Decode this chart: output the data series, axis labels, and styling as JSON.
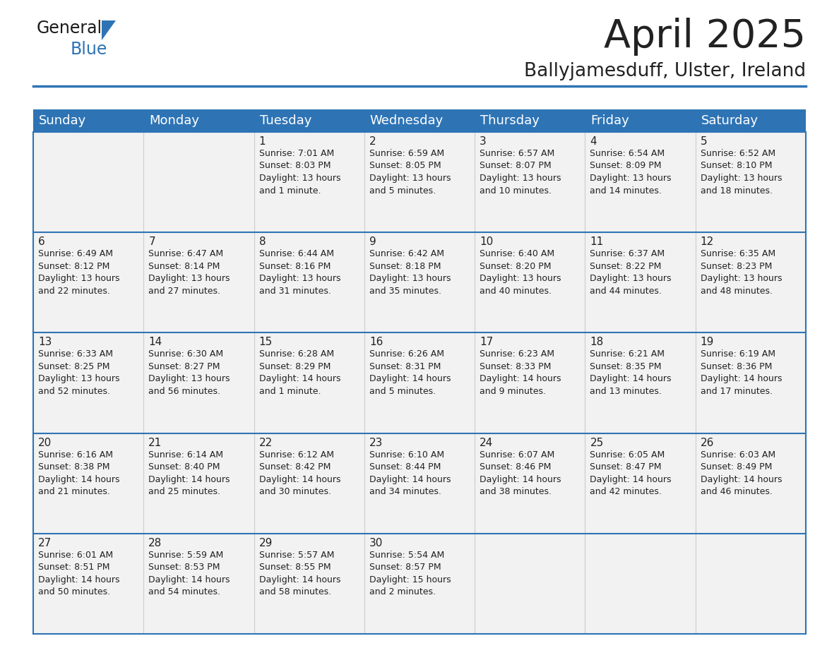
{
  "title": "April 2025",
  "subtitle": "Ballyjamesduff, Ulster, Ireland",
  "header_bg": "#2E74B5",
  "header_text_color": "#FFFFFF",
  "cell_bg_odd": "#F2F2F2",
  "cell_bg_even": "#FFFFFF",
  "border_color": "#2E74B5",
  "text_color": "#222222",
  "day_headers": [
    "Sunday",
    "Monday",
    "Tuesday",
    "Wednesday",
    "Thursday",
    "Friday",
    "Saturday"
  ],
  "weeks": [
    [
      {
        "day": null,
        "info": null
      },
      {
        "day": null,
        "info": null
      },
      {
        "day": "1",
        "info": "Sunrise: 7:01 AM\nSunset: 8:03 PM\nDaylight: 13 hours\nand 1 minute."
      },
      {
        "day": "2",
        "info": "Sunrise: 6:59 AM\nSunset: 8:05 PM\nDaylight: 13 hours\nand 5 minutes."
      },
      {
        "day": "3",
        "info": "Sunrise: 6:57 AM\nSunset: 8:07 PM\nDaylight: 13 hours\nand 10 minutes."
      },
      {
        "day": "4",
        "info": "Sunrise: 6:54 AM\nSunset: 8:09 PM\nDaylight: 13 hours\nand 14 minutes."
      },
      {
        "day": "5",
        "info": "Sunrise: 6:52 AM\nSunset: 8:10 PM\nDaylight: 13 hours\nand 18 minutes."
      }
    ],
    [
      {
        "day": "6",
        "info": "Sunrise: 6:49 AM\nSunset: 8:12 PM\nDaylight: 13 hours\nand 22 minutes."
      },
      {
        "day": "7",
        "info": "Sunrise: 6:47 AM\nSunset: 8:14 PM\nDaylight: 13 hours\nand 27 minutes."
      },
      {
        "day": "8",
        "info": "Sunrise: 6:44 AM\nSunset: 8:16 PM\nDaylight: 13 hours\nand 31 minutes."
      },
      {
        "day": "9",
        "info": "Sunrise: 6:42 AM\nSunset: 8:18 PM\nDaylight: 13 hours\nand 35 minutes."
      },
      {
        "day": "10",
        "info": "Sunrise: 6:40 AM\nSunset: 8:20 PM\nDaylight: 13 hours\nand 40 minutes."
      },
      {
        "day": "11",
        "info": "Sunrise: 6:37 AM\nSunset: 8:22 PM\nDaylight: 13 hours\nand 44 minutes."
      },
      {
        "day": "12",
        "info": "Sunrise: 6:35 AM\nSunset: 8:23 PM\nDaylight: 13 hours\nand 48 minutes."
      }
    ],
    [
      {
        "day": "13",
        "info": "Sunrise: 6:33 AM\nSunset: 8:25 PM\nDaylight: 13 hours\nand 52 minutes."
      },
      {
        "day": "14",
        "info": "Sunrise: 6:30 AM\nSunset: 8:27 PM\nDaylight: 13 hours\nand 56 minutes."
      },
      {
        "day": "15",
        "info": "Sunrise: 6:28 AM\nSunset: 8:29 PM\nDaylight: 14 hours\nand 1 minute."
      },
      {
        "day": "16",
        "info": "Sunrise: 6:26 AM\nSunset: 8:31 PM\nDaylight: 14 hours\nand 5 minutes."
      },
      {
        "day": "17",
        "info": "Sunrise: 6:23 AM\nSunset: 8:33 PM\nDaylight: 14 hours\nand 9 minutes."
      },
      {
        "day": "18",
        "info": "Sunrise: 6:21 AM\nSunset: 8:35 PM\nDaylight: 14 hours\nand 13 minutes."
      },
      {
        "day": "19",
        "info": "Sunrise: 6:19 AM\nSunset: 8:36 PM\nDaylight: 14 hours\nand 17 minutes."
      }
    ],
    [
      {
        "day": "20",
        "info": "Sunrise: 6:16 AM\nSunset: 8:38 PM\nDaylight: 14 hours\nand 21 minutes."
      },
      {
        "day": "21",
        "info": "Sunrise: 6:14 AM\nSunset: 8:40 PM\nDaylight: 14 hours\nand 25 minutes."
      },
      {
        "day": "22",
        "info": "Sunrise: 6:12 AM\nSunset: 8:42 PM\nDaylight: 14 hours\nand 30 minutes."
      },
      {
        "day": "23",
        "info": "Sunrise: 6:10 AM\nSunset: 8:44 PM\nDaylight: 14 hours\nand 34 minutes."
      },
      {
        "day": "24",
        "info": "Sunrise: 6:07 AM\nSunset: 8:46 PM\nDaylight: 14 hours\nand 38 minutes."
      },
      {
        "day": "25",
        "info": "Sunrise: 6:05 AM\nSunset: 8:47 PM\nDaylight: 14 hours\nand 42 minutes."
      },
      {
        "day": "26",
        "info": "Sunrise: 6:03 AM\nSunset: 8:49 PM\nDaylight: 14 hours\nand 46 minutes."
      }
    ],
    [
      {
        "day": "27",
        "info": "Sunrise: 6:01 AM\nSunset: 8:51 PM\nDaylight: 14 hours\nand 50 minutes."
      },
      {
        "day": "28",
        "info": "Sunrise: 5:59 AM\nSunset: 8:53 PM\nDaylight: 14 hours\nand 54 minutes."
      },
      {
        "day": "29",
        "info": "Sunrise: 5:57 AM\nSunset: 8:55 PM\nDaylight: 14 hours\nand 58 minutes."
      },
      {
        "day": "30",
        "info": "Sunrise: 5:54 AM\nSunset: 8:57 PM\nDaylight: 15 hours\nand 2 minutes."
      },
      {
        "day": null,
        "info": null
      },
      {
        "day": null,
        "info": null
      },
      {
        "day": null,
        "info": null
      }
    ]
  ],
  "title_fontsize": 40,
  "subtitle_fontsize": 19,
  "header_fontsize": 13,
  "day_number_fontsize": 11,
  "info_fontsize": 9,
  "logo_general_fontsize": 17,
  "logo_blue_fontsize": 17
}
